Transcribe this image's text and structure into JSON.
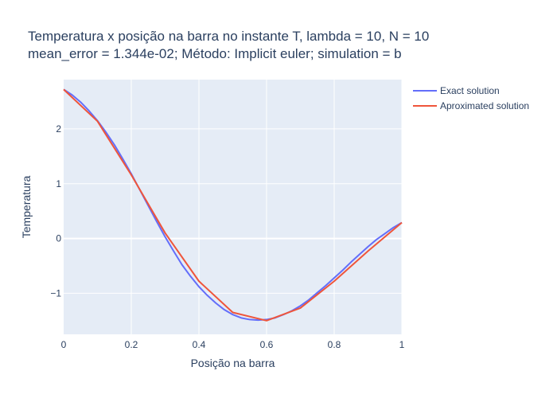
{
  "chart_data": {
    "type": "line",
    "title_line1": "Temperatura x posição na barra no instante T, lambda = 10, N = 10",
    "title_line2": "mean_error = 1.344e-02; Método: Implicit euler; simulation = b",
    "xlabel": "Posição na barra",
    "ylabel": "Temperatura",
    "xlim": [
      0,
      1
    ],
    "ylim": [
      -1.75,
      2.9
    ],
    "x_ticks": [
      0,
      0.2,
      0.4,
      0.6,
      0.8,
      1
    ],
    "x_tick_labels": [
      "0",
      "0.2",
      "0.4",
      "0.6",
      "0.8",
      "1"
    ],
    "y_ticks": [
      -1,
      0,
      1,
      2
    ],
    "y_tick_labels": [
      "−1",
      "0",
      "1",
      "2"
    ],
    "grid": true,
    "legend_position": "top-right",
    "plot_bg": "#e5ecf6",
    "series": [
      {
        "name": "Exact solution",
        "color": "#636efa",
        "x": [
          0,
          0.025,
          0.05,
          0.075,
          0.1,
          0.125,
          0.15,
          0.175,
          0.2,
          0.225,
          0.25,
          0.275,
          0.3,
          0.325,
          0.35,
          0.375,
          0.4,
          0.425,
          0.45,
          0.475,
          0.5,
          0.525,
          0.55,
          0.575,
          0.6,
          0.625,
          0.65,
          0.675,
          0.7,
          0.725,
          0.75,
          0.775,
          0.8,
          0.825,
          0.85,
          0.875,
          0.9,
          0.925,
          0.95,
          0.975,
          1
        ],
        "y": [
          2.72,
          2.62,
          2.49,
          2.33,
          2.15,
          1.94,
          1.71,
          1.45,
          1.18,
          0.89,
          0.6,
          0.31,
          0.03,
          -0.23,
          -0.48,
          -0.69,
          -0.88,
          -1.04,
          -1.18,
          -1.3,
          -1.39,
          -1.45,
          -1.48,
          -1.49,
          -1.48,
          -1.45,
          -1.39,
          -1.32,
          -1.23,
          -1.12,
          -0.99,
          -0.86,
          -0.72,
          -0.58,
          -0.43,
          -0.29,
          -0.15,
          -0.02,
          0.09,
          0.2,
          0.29
        ]
      },
      {
        "name": "Aproximated solution",
        "color": "#ef553b",
        "x": [
          0,
          0.1,
          0.2,
          0.3,
          0.4,
          0.5,
          0.6,
          0.7,
          0.8,
          0.9,
          1
        ],
        "y": [
          2.72,
          2.14,
          1.16,
          0.1,
          -0.78,
          -1.35,
          -1.5,
          -1.27,
          -0.78,
          -0.23,
          0.29
        ]
      }
    ]
  }
}
